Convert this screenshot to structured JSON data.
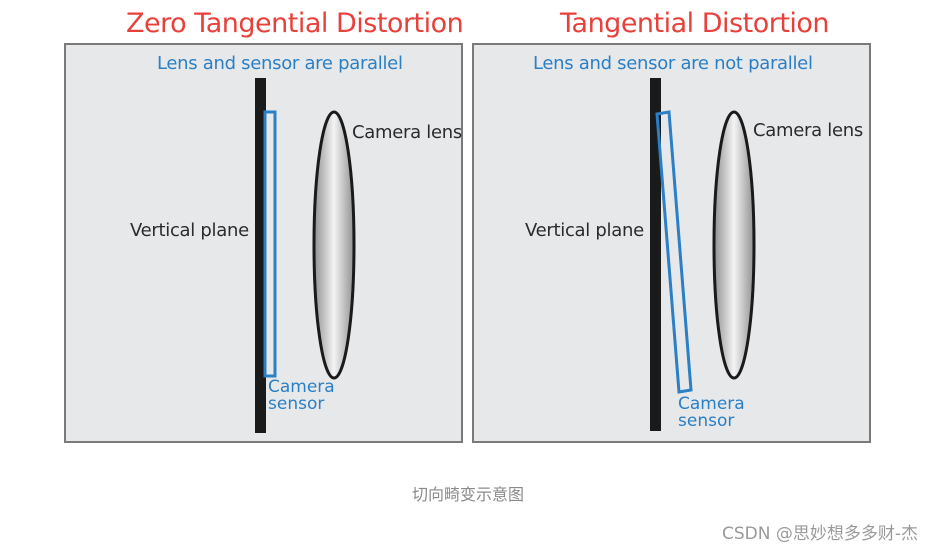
{
  "left": {
    "title": "Zero Tangential Distortion",
    "subtitle": "Lens and sensor are parallel",
    "plane_label": "Vertical plane",
    "lens_label": "Camera lens",
    "sensor_label_line1": "Camera",
    "sensor_label_line2": "sensor"
  },
  "right": {
    "title": "Tangential Distortion",
    "subtitle": "Lens and sensor are not parallel",
    "plane_label": "Vertical plane",
    "lens_label": "Camera lens",
    "sensor_label_line1": "Camera",
    "sensor_label_line2": "sensor"
  },
  "caption": "切向畸变示意图",
  "watermark": "CSDN @思妙想多多财-杰",
  "colors": {
    "title": "#e8413b",
    "subtitle": "#2a7fc5",
    "sensor": "#2a7fc5",
    "panel_bg": "#e7e8ea"
  }
}
